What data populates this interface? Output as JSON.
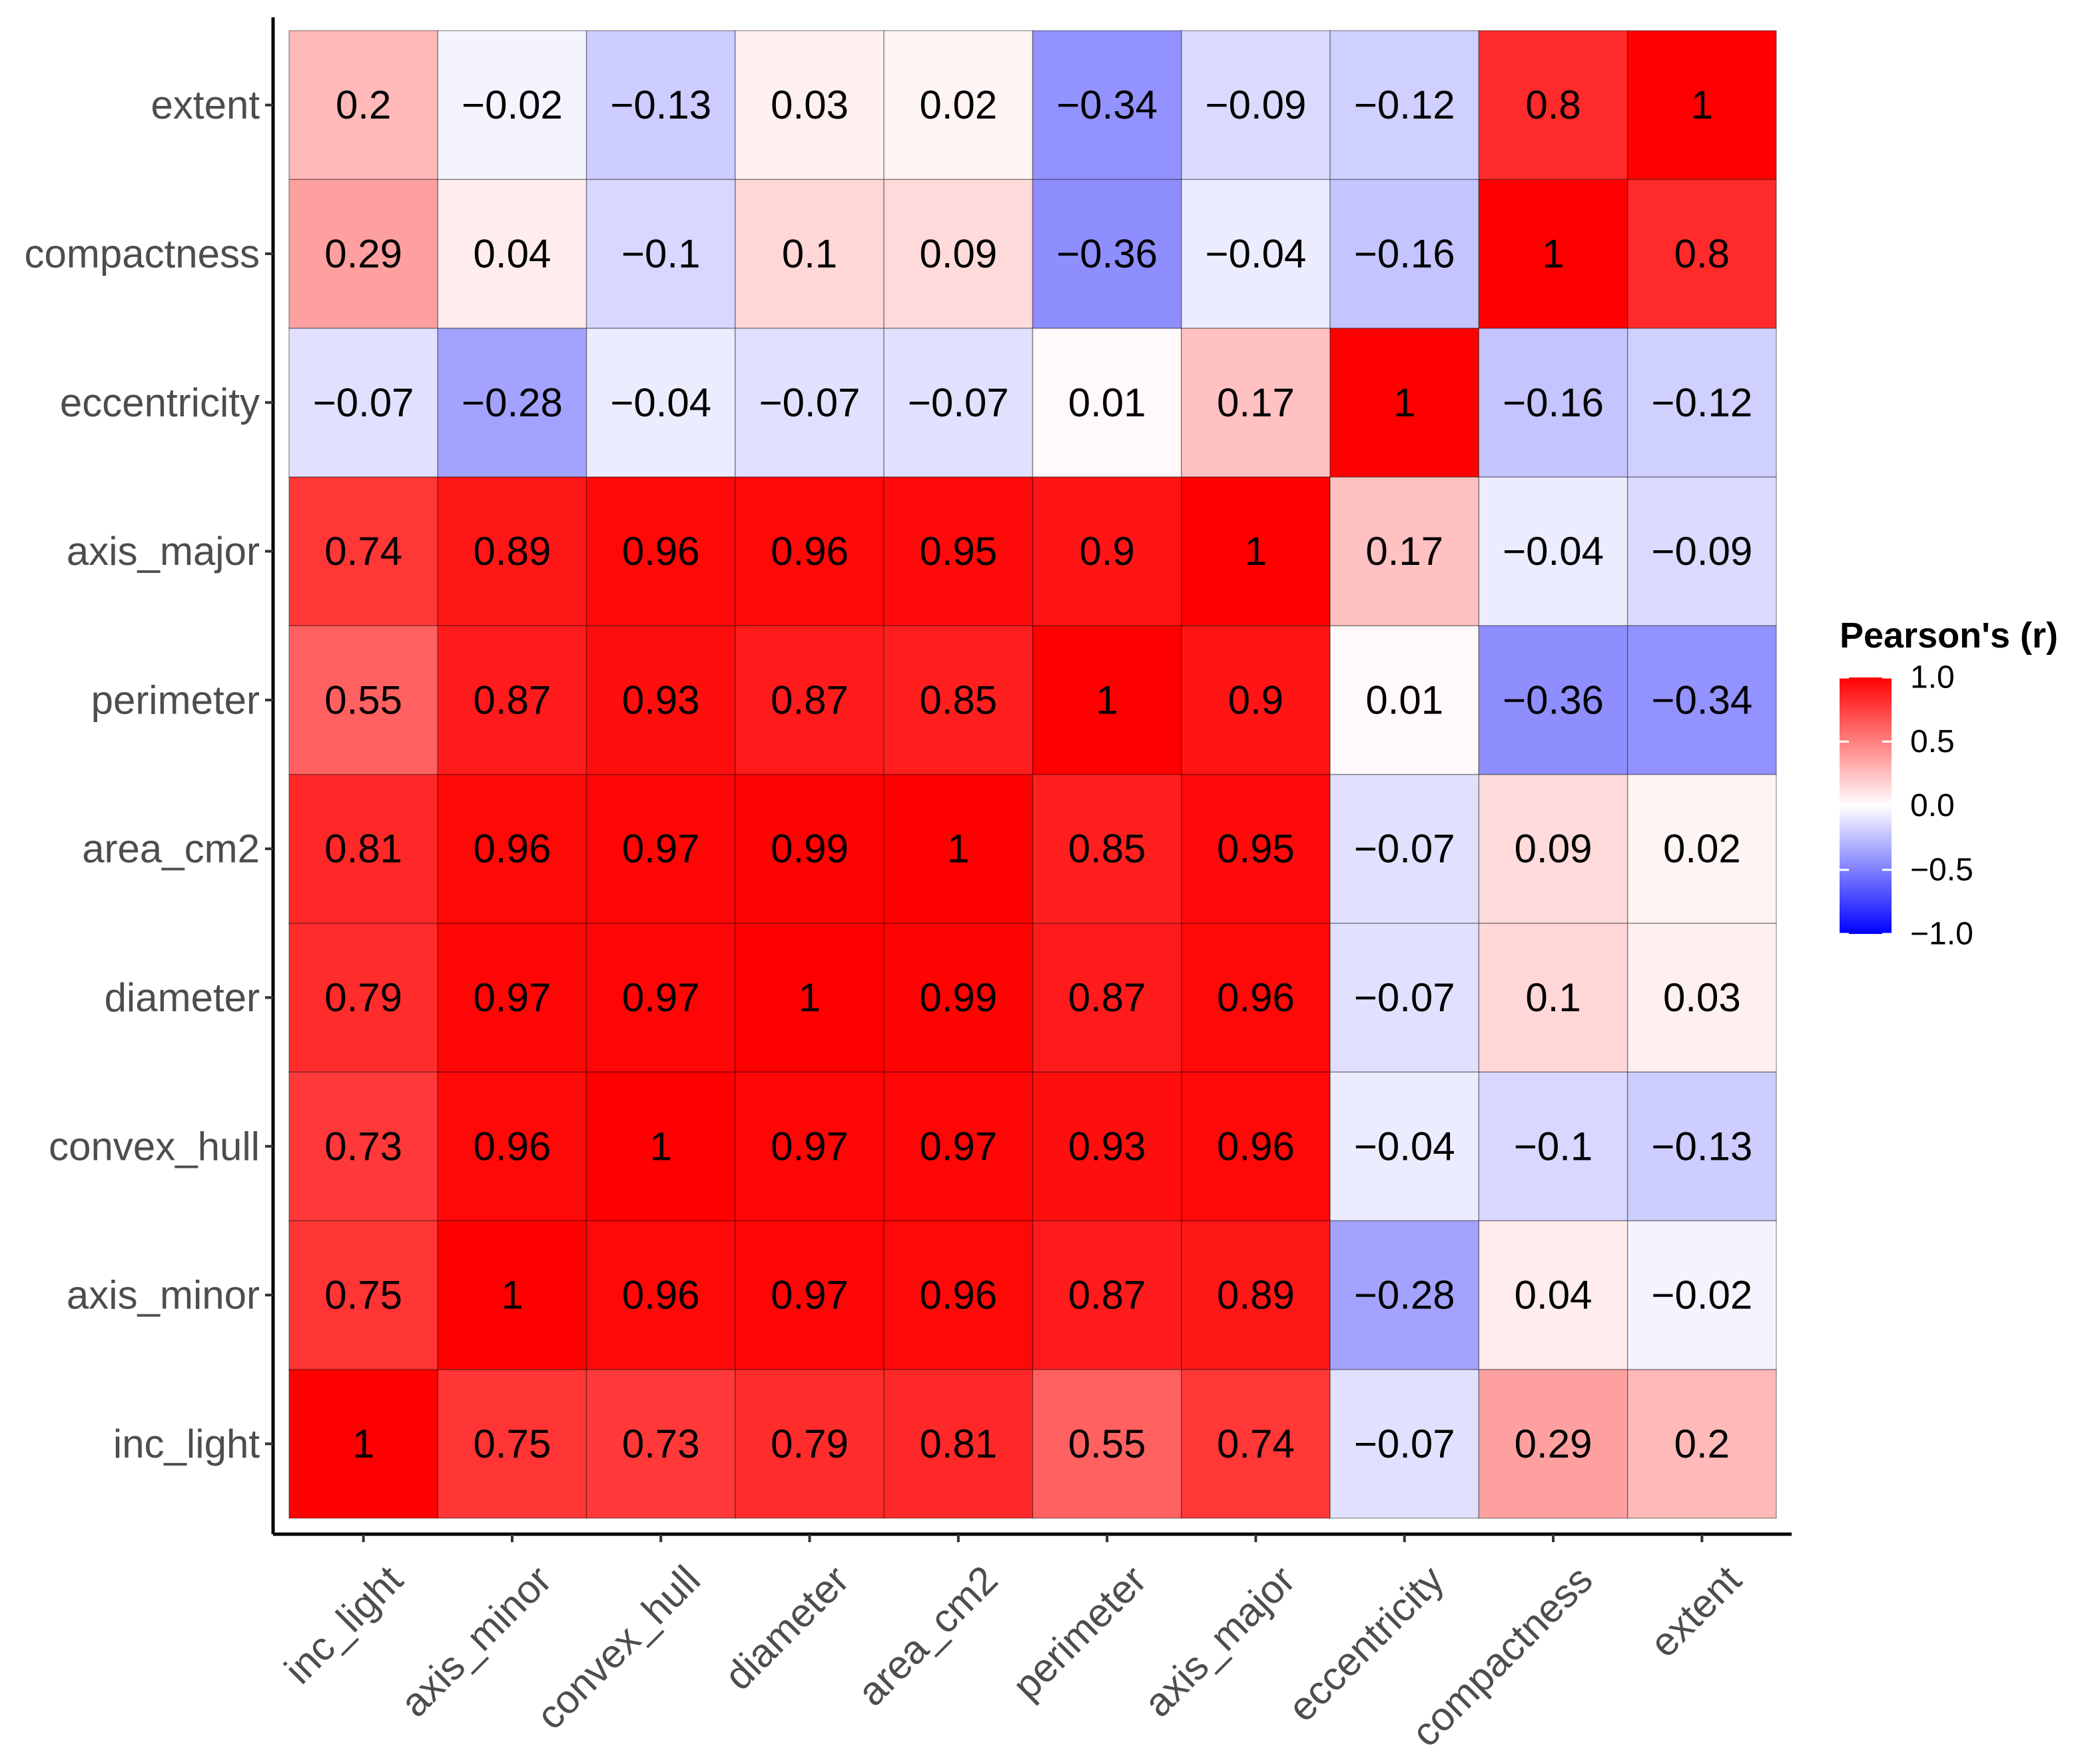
{
  "chart_data": {
    "type": "heatmap",
    "x_categories": [
      "inc_light",
      "axis_minor",
      "convex_hull",
      "diameter",
      "area_cm2",
      "perimeter",
      "axis_major",
      "eccentricity",
      "compactness",
      "extent"
    ],
    "y_categories": [
      "inc_light",
      "axis_minor",
      "convex_hull",
      "diameter",
      "area_cm2",
      "perimeter",
      "axis_major",
      "eccentricity",
      "compactness",
      "extent"
    ],
    "values": [
      [
        "1",
        "0.75",
        "0.73",
        "0.79",
        "0.81",
        "0.55",
        "0.74",
        "−0.07",
        "0.29",
        "0.2"
      ],
      [
        "0.75",
        "1",
        "0.96",
        "0.97",
        "0.96",
        "0.87",
        "0.89",
        "−0.28",
        "0.04",
        "−0.02"
      ],
      [
        "0.73",
        "0.96",
        "1",
        "0.97",
        "0.97",
        "0.93",
        "0.96",
        "−0.04",
        "−0.1",
        "−0.13"
      ],
      [
        "0.79",
        "0.97",
        "0.97",
        "1",
        "0.99",
        "0.87",
        "0.96",
        "−0.07",
        "0.1",
        "0.03"
      ],
      [
        "0.81",
        "0.96",
        "0.97",
        "0.99",
        "1",
        "0.85",
        "0.95",
        "−0.07",
        "0.09",
        "0.02"
      ],
      [
        "0.55",
        "0.87",
        "0.93",
        "0.87",
        "0.85",
        "1",
        "0.9",
        "0.01",
        "−0.36",
        "−0.34"
      ],
      [
        "0.74",
        "0.89",
        "0.96",
        "0.96",
        "0.95",
        "0.9",
        "1",
        "0.17",
        "−0.04",
        "−0.09"
      ],
      [
        "−0.07",
        "−0.28",
        "−0.04",
        "−0.07",
        "−0.07",
        "0.01",
        "0.17",
        "1",
        "−0.16",
        "−0.12"
      ],
      [
        "0.29",
        "0.04",
        "−0.1",
        "0.1",
        "0.09",
        "−0.36",
        "−0.04",
        "−0.16",
        "1",
        "0.8"
      ],
      [
        "0.2",
        "−0.02",
        "−0.13",
        "0.03",
        "0.02",
        "−0.34",
        "−0.09",
        "−0.12",
        "0.8",
        "1"
      ]
    ],
    "legend": {
      "title": "Pearson's (r)",
      "ticks": [
        "1.0",
        "0.5",
        "0.0",
        "−0.5",
        "−1.0"
      ],
      "range": [
        -1,
        1
      ],
      "placement": "right"
    },
    "colors": {
      "low": "#0000ff",
      "mid": "#ffffff",
      "high": "#ff0000",
      "cell_border": "#000000",
      "axis": "#000000"
    },
    "grid": false
  }
}
